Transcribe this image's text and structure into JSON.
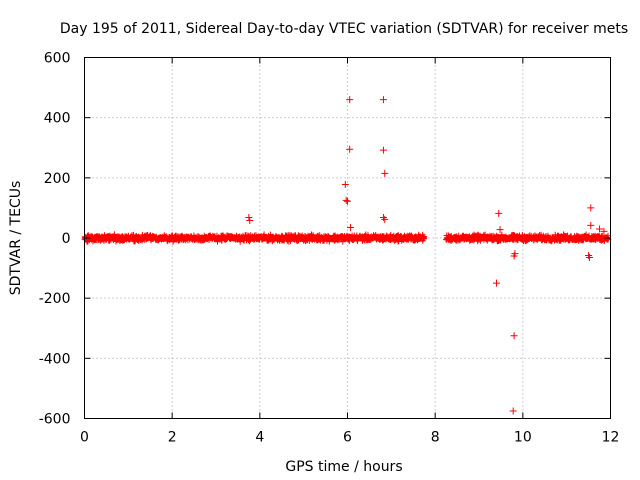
{
  "chart_data": {
    "type": "scatter",
    "title": "Day 195 of 2011, Sidereal Day-to-day VTEC variation (SDTVAR) for receiver mets",
    "xlabel": "GPS time / hours",
    "ylabel": "SDTVAR / TECUs",
    "xlim": [
      0,
      12
    ],
    "ylim": [
      -600,
      600
    ],
    "xticks": [
      0,
      2,
      4,
      6,
      8,
      10,
      12
    ],
    "yticks": [
      -600,
      -400,
      -200,
      0,
      200,
      400,
      600
    ],
    "grid": true,
    "marker": "+",
    "color": "#ff0000",
    "series": [
      {
        "name": "SDTVAR",
        "dense_bands": [
          {
            "x_start": 0.0,
            "x_end": 7.75,
            "y_min": -14,
            "y_max": 14
          },
          {
            "x_start": 8.25,
            "x_end": 11.95,
            "y_min": -14,
            "y_max": 14
          }
        ],
        "points": [
          {
            "x": 3.75,
            "y": 68
          },
          {
            "x": 3.77,
            "y": 58
          },
          {
            "x": 5.95,
            "y": 178
          },
          {
            "x": 5.97,
            "y": 125
          },
          {
            "x": 6.0,
            "y": 122
          },
          {
            "x": 6.05,
            "y": 460
          },
          {
            "x": 6.05,
            "y": 295
          },
          {
            "x": 6.07,
            "y": 35
          },
          {
            "x": 6.82,
            "y": 460
          },
          {
            "x": 6.82,
            "y": 292
          },
          {
            "x": 6.85,
            "y": 215
          },
          {
            "x": 6.82,
            "y": 68
          },
          {
            "x": 6.85,
            "y": 62
          },
          {
            "x": 9.4,
            "y": -150
          },
          {
            "x": 9.45,
            "y": 82
          },
          {
            "x": 9.48,
            "y": 28
          },
          {
            "x": 9.78,
            "y": -575
          },
          {
            "x": 9.8,
            "y": -325
          },
          {
            "x": 9.8,
            "y": -60
          },
          {
            "x": 9.82,
            "y": -52
          },
          {
            "x": 11.5,
            "y": -58
          },
          {
            "x": 11.52,
            "y": -65
          },
          {
            "x": 11.55,
            "y": 100
          },
          {
            "x": 11.55,
            "y": 42
          },
          {
            "x": 11.75,
            "y": 30
          },
          {
            "x": 11.85,
            "y": 22
          }
        ]
      }
    ]
  }
}
